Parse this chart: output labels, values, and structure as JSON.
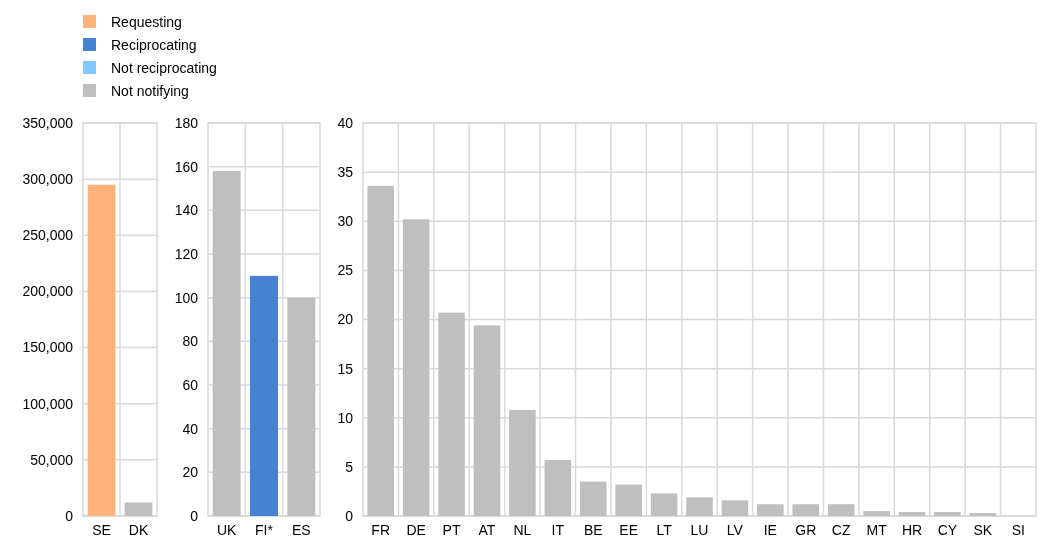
{
  "chart_data": [
    {
      "type": "bar",
      "categories": [
        "SE",
        "DK"
      ],
      "ylim": [
        0,
        350000
      ],
      "yticks": [
        {
          "value": 0,
          "label": "0"
        },
        {
          "value": 50000,
          "label": "50,000"
        },
        {
          "value": 100000,
          "label": "100,000"
        },
        {
          "value": 150000,
          "label": "150,000"
        },
        {
          "value": 200000,
          "label": "200,000"
        },
        {
          "value": 250000,
          "label": "250,000"
        },
        {
          "value": 300000,
          "label": "300,000"
        },
        {
          "value": 350000,
          "label": "350,000"
        }
      ],
      "grid": true,
      "legend": "top",
      "series": [
        {
          "name": "Requesting",
          "color": "#ffb27a",
          "values": [
            295000,
            null
          ]
        },
        {
          "name": "Reciprocating",
          "color": "#4682d2",
          "values": [
            null,
            null
          ]
        },
        {
          "name": "Not reciprocating",
          "color": "#80c8ff",
          "values": [
            null,
            null
          ]
        },
        {
          "name": "Not notifying",
          "color": "#bfbfbf",
          "values": [
            null,
            12000
          ]
        }
      ]
    },
    {
      "type": "bar",
      "categories": [
        "UK",
        "FI*",
        "ES"
      ],
      "ylim": [
        0,
        180
      ],
      "yticks": [
        0,
        20,
        40,
        60,
        80,
        100,
        120,
        140,
        160,
        180
      ],
      "grid": true,
      "series": [
        {
          "color": "#4682d2",
          "values": [
            null,
            110,
            null
          ]
        },
        {
          "color": "#bfbfbf",
          "values": [
            158,
            null,
            100
          ]
        }
      ]
    },
    {
      "type": "bar",
      "categories": [
        "FR",
        "DE",
        "PT",
        "AT",
        "NL",
        "IT",
        "BE",
        "EE",
        "LT",
        "LU",
        "LV",
        "IE",
        "GR",
        "CZ",
        "MT",
        "HR",
        "CY",
        "SK",
        "SI"
      ],
      "ylim": [
        0,
        40
      ],
      "yticks": [
        0,
        5,
        10,
        15,
        20,
        25,
        30,
        35,
        40
      ],
      "grid": true,
      "series": [
        {
          "color": "#bfbfbf",
          "values": [
            33.6,
            30.2,
            20.7,
            19.4,
            10.8,
            5.7,
            3.5,
            3.2,
            2.3,
            1.9,
            1.6,
            1.2,
            1.2,
            1.2,
            0.5,
            0.4,
            0.4,
            0.3,
            null
          ]
        }
      ]
    }
  ]
}
